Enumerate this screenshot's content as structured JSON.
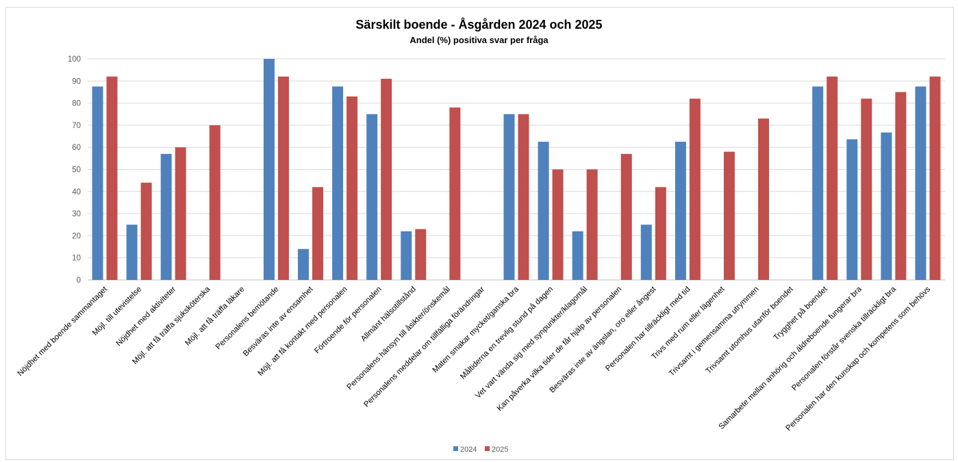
{
  "chart_data": {
    "type": "bar",
    "title": "Särskilt boende - Åsgården 2024 och 2025",
    "subtitle": "Andel (%) positiva svar per fråga",
    "xlabel": "",
    "ylabel": "",
    "ylim": [
      0,
      100
    ],
    "yticks": [
      0,
      10,
      20,
      30,
      40,
      50,
      60,
      70,
      80,
      90,
      100
    ],
    "grid": true,
    "legend_position": "bottom",
    "categories": [
      "Nöjdhet med boende sammantaget",
      "Möjl. till utevistelse",
      "Nöjdhet med aktiviteter",
      "Möjl. att få träffa sjuksköterska",
      "Möjl. att få träffa läkare",
      "Personalens bemötande",
      "Besväras inte av ensamhet",
      "Möjl. att få kontakt med personalen",
      "Förtroende för personalen",
      "Allmänt hälsotillstånd",
      "Personalens hänsyn till åsikter/önskemål",
      "Personalens meddelar om tillfälliga förändringar",
      "Maten smakar mycket/ganska bra",
      "Måltiderna en trevlig stund på dagen",
      "Vet vart vända sig med synpunkter/klagomål",
      "Kan påverka vilka tider de får hjälp av personalen",
      "Besväras inte av ängslan, oro eller ångest",
      "Personalen har tillräckligt med tid",
      "Trivs med rum eller lägenhet",
      "Trivsamt i gemensamma utrymmen",
      "Trivsamt utomhus utanför boendet",
      "Trygghet på boendet",
      "Samarbete mellan anhörig och äldreboende fungerar bra",
      "Personalen förstår svenska tillräckligt bra",
      "Personalen har den kunskap och kompetens som behövs"
    ],
    "series": [
      {
        "name": "2024",
        "color": "#4f81bd",
        "values": [
          87.5,
          25,
          57,
          null,
          null,
          100,
          14,
          87.5,
          75,
          22,
          null,
          null,
          75,
          62.5,
          22,
          null,
          25,
          62.5,
          null,
          null,
          null,
          87.5,
          63.6,
          66.7,
          87.5
        ]
      },
      {
        "name": "2025",
        "color": "#c0504d",
        "values": [
          92,
          44,
          60,
          70,
          null,
          92,
          42,
          83,
          91,
          23,
          78,
          null,
          75,
          50,
          50,
          57,
          42,
          82,
          58,
          73,
          null,
          92,
          82,
          85,
          92
        ]
      }
    ]
  }
}
